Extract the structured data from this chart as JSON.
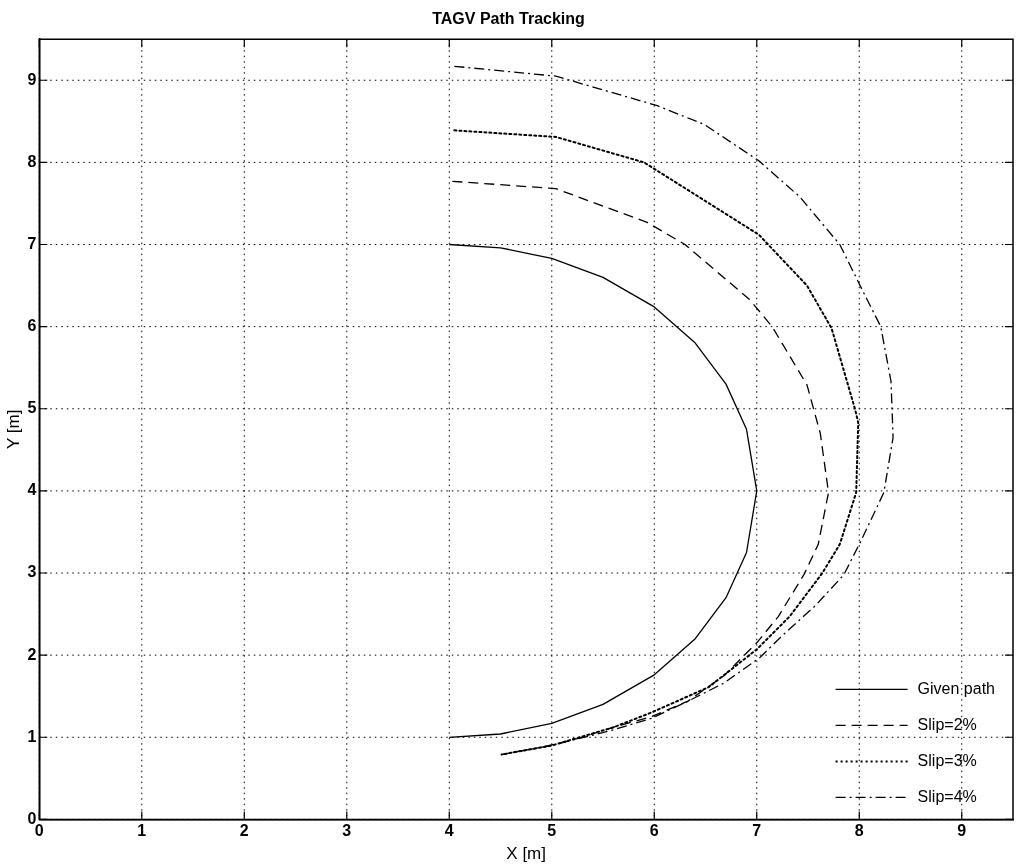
{
  "chart_data": {
    "type": "line",
    "title": "TAGV Path Tracking",
    "xlabel": "X [m]",
    "ylabel": "Y [m]",
    "xlim": [
      0,
      9.5
    ],
    "ylim": [
      0,
      9.5
    ],
    "xticks": [
      0,
      1,
      2,
      3,
      4,
      5,
      6,
      7,
      8,
      9
    ],
    "yticks": [
      0,
      1,
      2,
      3,
      4,
      5,
      6,
      7,
      8,
      9
    ],
    "grid": true,
    "legend": "bottom right",
    "marker": "none",
    "series": [
      {
        "name": "Given path",
        "color": "#000000",
        "line_style": "solid",
        "x": [
          4.0,
          4.5,
          5.0,
          5.5,
          6.0,
          6.4,
          6.7,
          6.9,
          7.0,
          6.9,
          6.7,
          6.4,
          6.0,
          5.5,
          5.0,
          4.5,
          4.0
        ],
        "values": [
          7.0,
          6.96,
          6.83,
          6.6,
          6.24,
          5.8,
          5.3,
          4.75,
          4.0,
          3.25,
          2.7,
          2.2,
          1.76,
          1.4,
          1.17,
          1.04,
          1.0
        ]
      },
      {
        "name": "Slip=2%",
        "color": "#000000",
        "line_style": "dashed",
        "x": [
          4.03,
          5.04,
          5.93,
          6.3,
          6.93,
          7.15,
          7.49,
          7.62,
          7.7,
          7.6,
          7.46,
          7.21,
          7.0,
          6.68,
          6.33,
          5.97,
          5.62,
          5.27,
          4.91,
          4.51
        ],
        "values": [
          7.77,
          7.68,
          7.27,
          7.0,
          6.33,
          6.0,
          5.29,
          4.7,
          3.98,
          3.35,
          2.98,
          2.47,
          2.15,
          1.75,
          1.44,
          1.25,
          1.13,
          0.99,
          0.88,
          0.79
        ]
      },
      {
        "name": "Slip=3%",
        "color": "#000000",
        "line_style": "dotted",
        "x": [
          4.05,
          5.04,
          5.9,
          7.02,
          7.49,
          7.73,
          7.96,
          7.99,
          7.97,
          7.81,
          7.64,
          7.32,
          7.0,
          6.53,
          5.97,
          5.6,
          5.0,
          4.51
        ],
        "values": [
          8.39,
          8.31,
          8.0,
          7.12,
          6.5,
          5.98,
          4.99,
          4.83,
          3.98,
          3.35,
          3.0,
          2.47,
          2.07,
          1.61,
          1.3,
          1.12,
          0.9,
          0.79
        ]
      },
      {
        "name": "Slip=4%",
        "color": "#000000",
        "line_style": "dashdot",
        "x": [
          4.05,
          5.04,
          6.03,
          6.49,
          7.02,
          7.42,
          7.81,
          8.04,
          8.21,
          8.31,
          8.33,
          8.24,
          8.02,
          7.85,
          7.57,
          7.25,
          7.03,
          6.68,
          6.33,
          5.97,
          5.6,
          5.0,
          4.51
        ],
        "values": [
          9.17,
          9.05,
          8.69,
          8.46,
          8.02,
          7.58,
          7.0,
          6.42,
          6.0,
          5.33,
          4.65,
          3.98,
          3.4,
          2.98,
          2.6,
          2.24,
          1.97,
          1.66,
          1.44,
          1.23,
          1.09,
          0.9,
          0.79
        ]
      }
    ]
  }
}
